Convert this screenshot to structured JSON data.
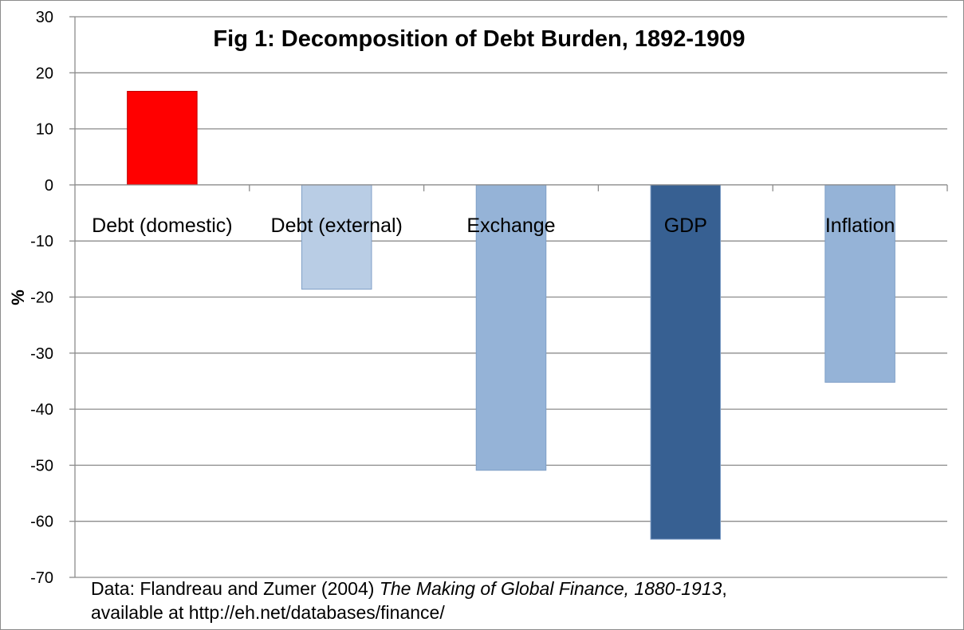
{
  "chart_data": {
    "type": "bar",
    "title": "Fig 1: Decomposition of Debt Burden, 1892-1909",
    "ylabel": "%",
    "xlabel": "",
    "ylim": [
      -70,
      30
    ],
    "yticks": [
      30,
      20,
      10,
      0,
      -10,
      -20,
      -30,
      -40,
      -50,
      -60,
      -70
    ],
    "grid": true,
    "legend": "none",
    "categories": [
      "Debt (domestic)",
      "Debt (external)",
      "Exchange",
      "GDP",
      "Inflation"
    ],
    "values": [
      16.7,
      -18.6,
      -50.9,
      -63.2,
      -35.2
    ],
    "colors": [
      "#ff0000",
      "#b9cde5",
      "#95b3d7",
      "#376092",
      "#95b3d7"
    ]
  },
  "source_note": {
    "prefix": "Data: Flandreau and Zumer (2004) ",
    "book_title": "The Making of Global Finance, 1880-1913",
    "comma": ",",
    "line2": "available at http://eh.net/databases/finance/"
  }
}
